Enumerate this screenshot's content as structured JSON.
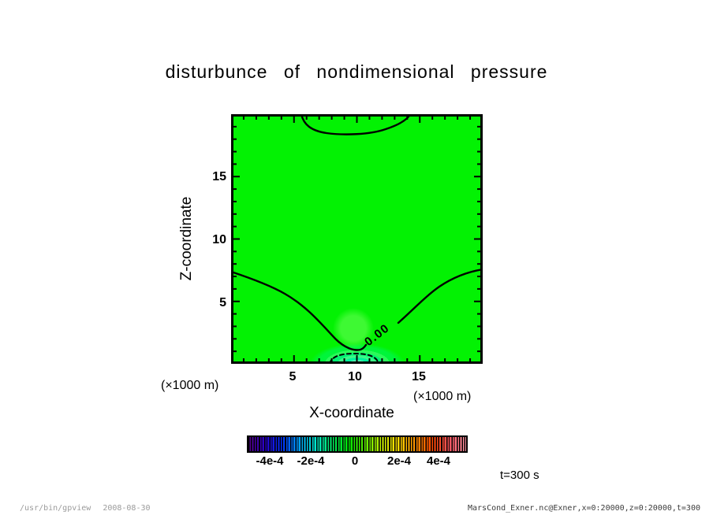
{
  "title": "disturbunce of nondimensional pressure",
  "plot": {
    "y_axis": {
      "label": "Z-coordinate",
      "units": "(×1000 m)",
      "ticks": [
        "15",
        "10",
        "5"
      ]
    },
    "x_axis": {
      "label": "X-coordinate",
      "units_left": "(×1000 m)",
      "units_right": "(×1000 m)",
      "ticks": [
        "5",
        "10",
        "15"
      ]
    },
    "contour_label": "0.00"
  },
  "colorbar": {
    "labels": [
      "-4e-4",
      "-2e-4",
      "0",
      "2e-4",
      "4e-4"
    ],
    "palette_colors": [
      "#5a0090",
      "#2800c8",
      "#0030ff",
      "#00a0ff",
      "#00e8d0",
      "#00e860",
      "#00e800",
      "#60f000",
      "#c8f000",
      "#ffd800",
      "#ff9000",
      "#ff4800",
      "#ff5460",
      "#ff96a6"
    ]
  },
  "annotation": "t=300 s",
  "footer": {
    "left_program": "/usr/bin/gpview",
    "left_date": "2008-08-30",
    "right": "MarsCond_Exner.nc@Exner,x=0:20000,z=0:20000,t=300"
  },
  "chart_data": {
    "type": "heatmap",
    "title": "disturbunce of nondimensional pressure",
    "xlabel": "X-coordinate",
    "ylabel": "Z-coordinate",
    "axis_units": "(×1000 m)",
    "xlim": [
      0,
      20
    ],
    "ylim": [
      0,
      20
    ],
    "x_ticks_major": [
      5,
      10,
      15
    ],
    "y_ticks_major": [
      5,
      10,
      15
    ],
    "minor_tick_step": 1,
    "time": "t=300 s",
    "grid": false,
    "legend_position": "bottom colorbar",
    "colorbar": {
      "range": [
        -0.0005,
        0.0005
      ],
      "tick_values": [
        -0.0004,
        -0.0002,
        0,
        0.0002,
        0.0004
      ],
      "palette": "rainbow, violet to salmon, striped levels"
    },
    "field": "disturbance of nondimensional pressure (Exner function) at t=300 s; nearly uniform value close to 0 (green) everywhere",
    "contours": [
      {
        "level": 0.0,
        "label": "0.00",
        "style": "solid",
        "path_description": "enters left edge at z=9.7, dips to z=1.1 at x=10 (valley at bottom center), rises to exit right edge at z=9.9; label 0.00 on rising right branch near x=11.8, z=2.3"
      },
      {
        "level": 0.0,
        "label": null,
        "style": "solid",
        "path_description": "shallow U-shaped arc hanging from top edge between x=5.6 and x=14.2, dipping to z=18.5"
      },
      {
        "level": "small negative",
        "label": null,
        "style": "dashed",
        "path_description": "small dashed arc hugging bottom edge centered at x=10, top near z=0.8"
      }
    ],
    "shading_features": [
      "uniform bright green background (value ~0)",
      "slightly brighter green blob centered near x=9.5, z=2.8",
      "concentric mint/cyan-green semicircular bands at bottom center near x=10, z=0 (weak negative anomaly)"
    ]
  }
}
